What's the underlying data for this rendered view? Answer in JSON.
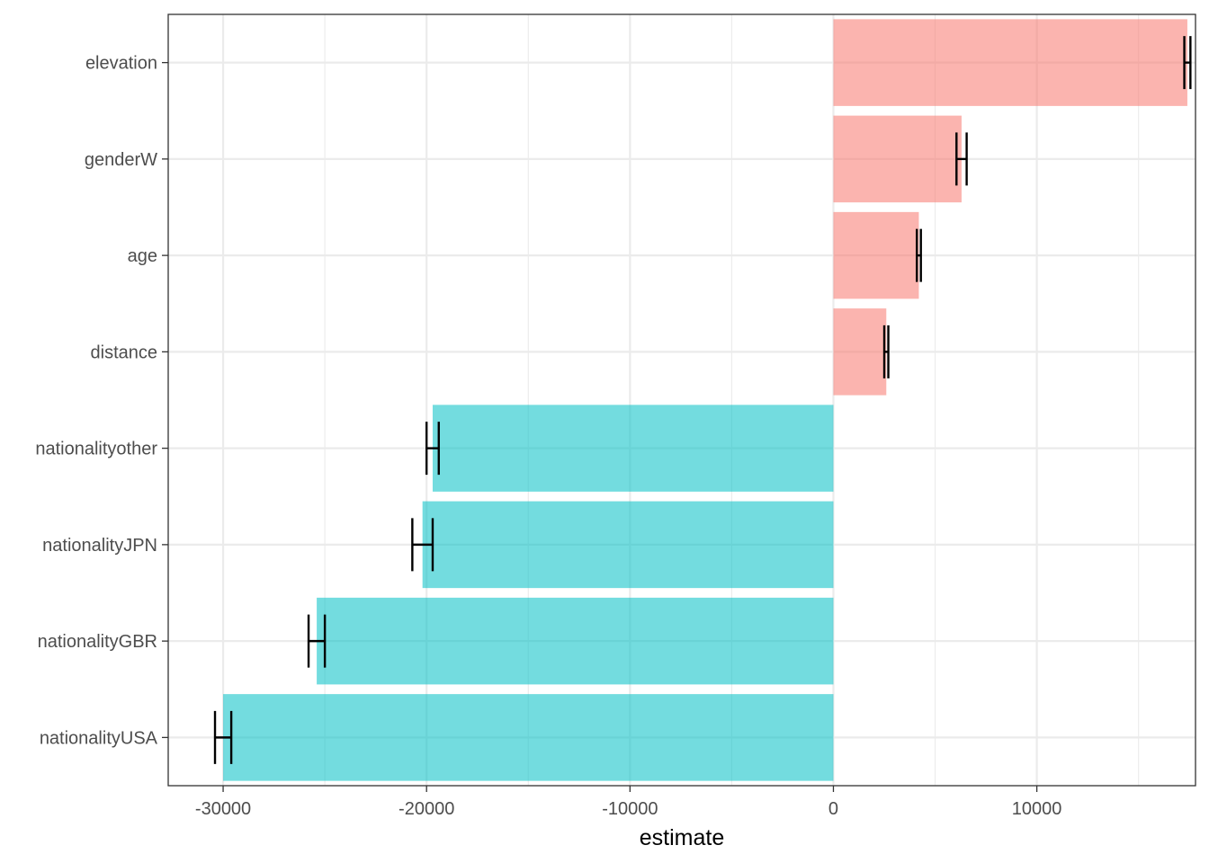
{
  "chart_data": {
    "type": "bar",
    "orientation": "horizontal",
    "title": "",
    "xlabel": "estimate",
    "ylabel": "",
    "xlim": [
      -32700,
      17800
    ],
    "x_ticks": [
      -30000,
      -20000,
      -10000,
      0,
      10000
    ],
    "x_tick_labels": [
      "-30000",
      "-20000",
      "-10000",
      "0",
      "10000"
    ],
    "grid": true,
    "legend": "none",
    "colors": {
      "positive": "#F8766D",
      "negative": "#00BFC4",
      "errorbar": "#000000",
      "panel_border": "#333333",
      "grid_major": "#EBEBEB"
    },
    "bar_opacity": 0.55,
    "categories": [
      "elevation",
      "genderW",
      "age",
      "distance",
      "nationalityother",
      "nationalityJPN",
      "nationalityGBR",
      "nationalityUSA"
    ],
    "values": [
      17400,
      6300,
      4200,
      2600,
      -19700,
      -20200,
      -25400,
      -30000
    ],
    "error_low": [
      17250,
      6050,
      4100,
      2500,
      -20000,
      -20700,
      -25800,
      -30400
    ],
    "error_high": [
      17550,
      6550,
      4300,
      2700,
      -19400,
      -19700,
      -25000,
      -29600
    ]
  }
}
